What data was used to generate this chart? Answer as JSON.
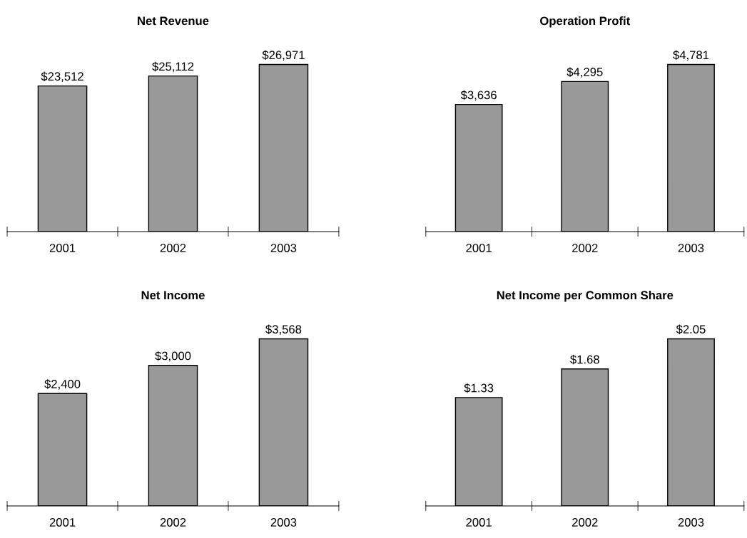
{
  "chart_data": [
    {
      "type": "bar",
      "title": "Net Revenue",
      "categories": [
        "2001",
        "2002",
        "2003"
      ],
      "values": [
        23512,
        25112,
        26971
      ],
      "value_labels": [
        "$23,512",
        "$25,112",
        "$26,971"
      ],
      "color": "#999999"
    },
    {
      "type": "bar",
      "title": "Operation Profit",
      "categories": [
        "2001",
        "2002",
        "2003"
      ],
      "values": [
        3636,
        4295,
        4781
      ],
      "value_labels": [
        "$3,636",
        "$4,295",
        "$4,781"
      ],
      "color": "#999999"
    },
    {
      "type": "bar",
      "title": "Net Income",
      "categories": [
        "2001",
        "2002",
        "2003"
      ],
      "values": [
        2400,
        3000,
        3568
      ],
      "value_labels": [
        "$2,400",
        "$3,000",
        "$3,568"
      ],
      "color": "#999999"
    },
    {
      "type": "bar",
      "title": "Net Income per Common Share",
      "categories": [
        "2001",
        "2002",
        "2003"
      ],
      "values": [
        1.33,
        1.68,
        2.05
      ],
      "value_labels": [
        "$1.33",
        "$1.68",
        "$2.05"
      ],
      "color": "#999999"
    }
  ]
}
